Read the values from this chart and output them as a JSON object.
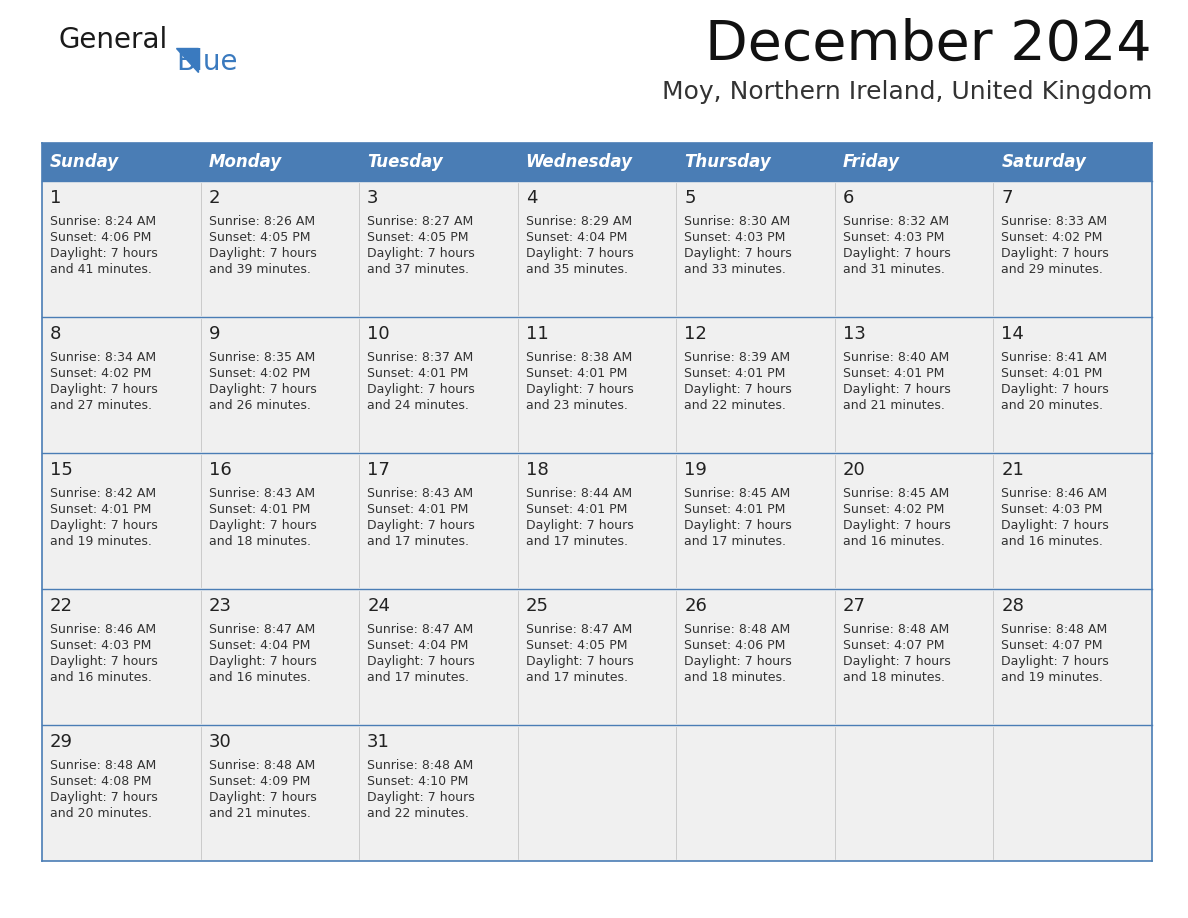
{
  "title": "December 2024",
  "subtitle": "Moy, Northern Ireland, United Kingdom",
  "header_color": "#4a7db5",
  "header_text_color": "#FFFFFF",
  "cell_bg_color": "#f0f0f0",
  "border_color": "#4a7db5",
  "text_color": "#333333",
  "day_num_color": "#222222",
  "days_of_week": [
    "Sunday",
    "Monday",
    "Tuesday",
    "Wednesday",
    "Thursday",
    "Friday",
    "Saturday"
  ],
  "weeks": [
    [
      {
        "day": "1",
        "sunrise": "8:24 AM",
        "sunset": "4:06 PM",
        "daylight_line1": "Daylight: 7 hours",
        "daylight_line2": "and 41 minutes."
      },
      {
        "day": "2",
        "sunrise": "8:26 AM",
        "sunset": "4:05 PM",
        "daylight_line1": "Daylight: 7 hours",
        "daylight_line2": "and 39 minutes."
      },
      {
        "day": "3",
        "sunrise": "8:27 AM",
        "sunset": "4:05 PM",
        "daylight_line1": "Daylight: 7 hours",
        "daylight_line2": "and 37 minutes."
      },
      {
        "day": "4",
        "sunrise": "8:29 AM",
        "sunset": "4:04 PM",
        "daylight_line1": "Daylight: 7 hours",
        "daylight_line2": "and 35 minutes."
      },
      {
        "day": "5",
        "sunrise": "8:30 AM",
        "sunset": "4:03 PM",
        "daylight_line1": "Daylight: 7 hours",
        "daylight_line2": "and 33 minutes."
      },
      {
        "day": "6",
        "sunrise": "8:32 AM",
        "sunset": "4:03 PM",
        "daylight_line1": "Daylight: 7 hours",
        "daylight_line2": "and 31 minutes."
      },
      {
        "day": "7",
        "sunrise": "8:33 AM",
        "sunset": "4:02 PM",
        "daylight_line1": "Daylight: 7 hours",
        "daylight_line2": "and 29 minutes."
      }
    ],
    [
      {
        "day": "8",
        "sunrise": "8:34 AM",
        "sunset": "4:02 PM",
        "daylight_line1": "Daylight: 7 hours",
        "daylight_line2": "and 27 minutes."
      },
      {
        "day": "9",
        "sunrise": "8:35 AM",
        "sunset": "4:02 PM",
        "daylight_line1": "Daylight: 7 hours",
        "daylight_line2": "and 26 minutes."
      },
      {
        "day": "10",
        "sunrise": "8:37 AM",
        "sunset": "4:01 PM",
        "daylight_line1": "Daylight: 7 hours",
        "daylight_line2": "and 24 minutes."
      },
      {
        "day": "11",
        "sunrise": "8:38 AM",
        "sunset": "4:01 PM",
        "daylight_line1": "Daylight: 7 hours",
        "daylight_line2": "and 23 minutes."
      },
      {
        "day": "12",
        "sunrise": "8:39 AM",
        "sunset": "4:01 PM",
        "daylight_line1": "Daylight: 7 hours",
        "daylight_line2": "and 22 minutes."
      },
      {
        "day": "13",
        "sunrise": "8:40 AM",
        "sunset": "4:01 PM",
        "daylight_line1": "Daylight: 7 hours",
        "daylight_line2": "and 21 minutes."
      },
      {
        "day": "14",
        "sunrise": "8:41 AM",
        "sunset": "4:01 PM",
        "daylight_line1": "Daylight: 7 hours",
        "daylight_line2": "and 20 minutes."
      }
    ],
    [
      {
        "day": "15",
        "sunrise": "8:42 AM",
        "sunset": "4:01 PM",
        "daylight_line1": "Daylight: 7 hours",
        "daylight_line2": "and 19 minutes."
      },
      {
        "day": "16",
        "sunrise": "8:43 AM",
        "sunset": "4:01 PM",
        "daylight_line1": "Daylight: 7 hours",
        "daylight_line2": "and 18 minutes."
      },
      {
        "day": "17",
        "sunrise": "8:43 AM",
        "sunset": "4:01 PM",
        "daylight_line1": "Daylight: 7 hours",
        "daylight_line2": "and 17 minutes."
      },
      {
        "day": "18",
        "sunrise": "8:44 AM",
        "sunset": "4:01 PM",
        "daylight_line1": "Daylight: 7 hours",
        "daylight_line2": "and 17 minutes."
      },
      {
        "day": "19",
        "sunrise": "8:45 AM",
        "sunset": "4:01 PM",
        "daylight_line1": "Daylight: 7 hours",
        "daylight_line2": "and 17 minutes."
      },
      {
        "day": "20",
        "sunrise": "8:45 AM",
        "sunset": "4:02 PM",
        "daylight_line1": "Daylight: 7 hours",
        "daylight_line2": "and 16 minutes."
      },
      {
        "day": "21",
        "sunrise": "8:46 AM",
        "sunset": "4:03 PM",
        "daylight_line1": "Daylight: 7 hours",
        "daylight_line2": "and 16 minutes."
      }
    ],
    [
      {
        "day": "22",
        "sunrise": "8:46 AM",
        "sunset": "4:03 PM",
        "daylight_line1": "Daylight: 7 hours",
        "daylight_line2": "and 16 minutes."
      },
      {
        "day": "23",
        "sunrise": "8:47 AM",
        "sunset": "4:04 PM",
        "daylight_line1": "Daylight: 7 hours",
        "daylight_line2": "and 16 minutes."
      },
      {
        "day": "24",
        "sunrise": "8:47 AM",
        "sunset": "4:04 PM",
        "daylight_line1": "Daylight: 7 hours",
        "daylight_line2": "and 17 minutes."
      },
      {
        "day": "25",
        "sunrise": "8:47 AM",
        "sunset": "4:05 PM",
        "daylight_line1": "Daylight: 7 hours",
        "daylight_line2": "and 17 minutes."
      },
      {
        "day": "26",
        "sunrise": "8:48 AM",
        "sunset": "4:06 PM",
        "daylight_line1": "Daylight: 7 hours",
        "daylight_line2": "and 18 minutes."
      },
      {
        "day": "27",
        "sunrise": "8:48 AM",
        "sunset": "4:07 PM",
        "daylight_line1": "Daylight: 7 hours",
        "daylight_line2": "and 18 minutes."
      },
      {
        "day": "28",
        "sunrise": "8:48 AM",
        "sunset": "4:07 PM",
        "daylight_line1": "Daylight: 7 hours",
        "daylight_line2": "and 19 minutes."
      }
    ],
    [
      {
        "day": "29",
        "sunrise": "8:48 AM",
        "sunset": "4:08 PM",
        "daylight_line1": "Daylight: 7 hours",
        "daylight_line2": "and 20 minutes."
      },
      {
        "day": "30",
        "sunrise": "8:48 AM",
        "sunset": "4:09 PM",
        "daylight_line1": "Daylight: 7 hours",
        "daylight_line2": "and 21 minutes."
      },
      {
        "day": "31",
        "sunrise": "8:48 AM",
        "sunset": "4:10 PM",
        "daylight_line1": "Daylight: 7 hours",
        "daylight_line2": "and 22 minutes."
      },
      null,
      null,
      null,
      null
    ]
  ],
  "logo_general_color": "#1a1a1a",
  "logo_blue_color": "#3a7abf",
  "title_fontsize": 40,
  "subtitle_fontsize": 18,
  "header_fontsize": 12,
  "day_num_fontsize": 13,
  "cell_text_fontsize": 9
}
